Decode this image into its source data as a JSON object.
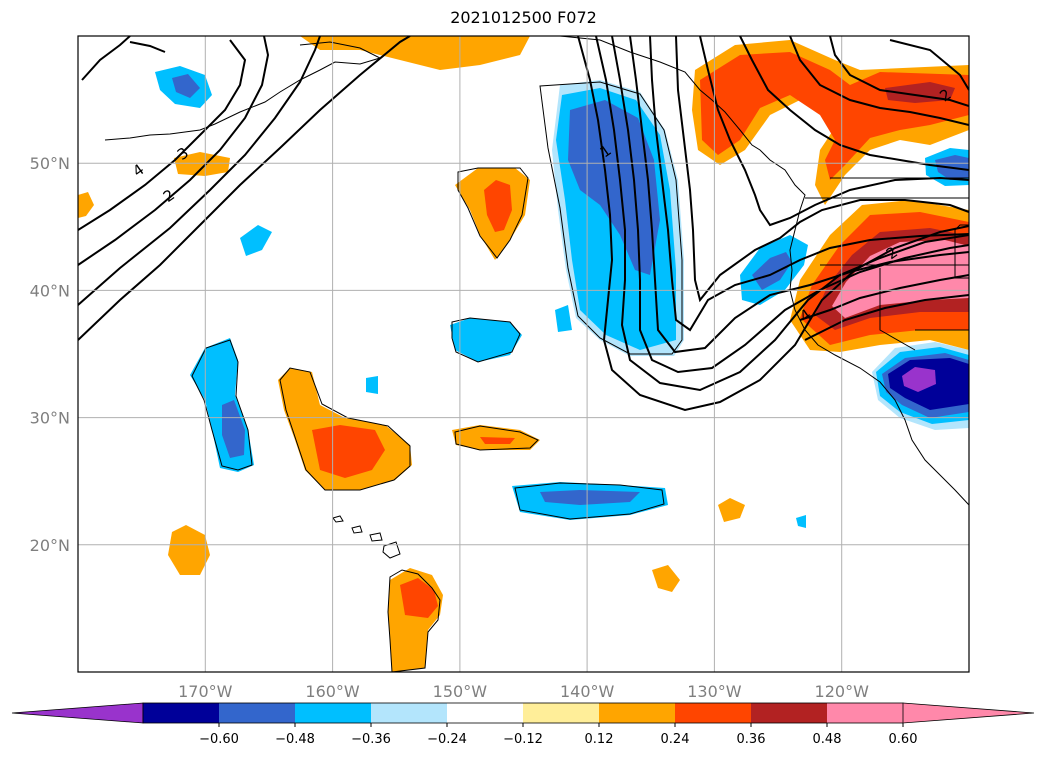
{
  "title": "2021012500 F072",
  "map": {
    "lon_range": [
      -180,
      -110
    ],
    "lat_range": [
      10,
      60
    ],
    "gridlines": true,
    "lon_ticks": [
      {
        "lon": -170,
        "label": "170°W"
      },
      {
        "lon": -160,
        "label": "160°W"
      },
      {
        "lon": -150,
        "label": "150°W"
      },
      {
        "lon": -140,
        "label": "140°W"
      },
      {
        "lon": -130,
        "label": "130°W"
      },
      {
        "lon": -120,
        "label": "120°W"
      }
    ],
    "lat_ticks": [
      {
        "lat": 50,
        "label": "50°N"
      },
      {
        "lat": 40,
        "label": "40°N"
      },
      {
        "lat": 30,
        "label": "30°N"
      },
      {
        "lat": 20,
        "label": "20°N"
      }
    ],
    "contour_labels": [
      {
        "text": "4",
        "lon": -175.3,
        "lat": 49.5
      },
      {
        "text": "3",
        "lon": -171.8,
        "lat": 50.8
      },
      {
        "text": "2",
        "lon": -172.9,
        "lat": 47.5
      },
      {
        "text": "1",
        "lon": -138.6,
        "lat": 51.0
      },
      {
        "text": "4",
        "lon": -122.9,
        "lat": 38.1
      },
      {
        "text": "2",
        "lon": -116.1,
        "lat": 43.0
      },
      {
        "text": "2",
        "lon": -111.9,
        "lat": 55.4
      }
    ]
  },
  "colorbar": {
    "colors": [
      "#9933cc",
      "#000099",
      "#3366cc",
      "#00bfff",
      "#b3e5fc",
      "#ffffff",
      "#ffee99",
      "#ffa500",
      "#ff4500",
      "#b22222",
      "#ff88aa",
      "#ff88aa"
    ],
    "ticks": [
      "−0.60",
      "−0.48",
      "−0.36",
      "−0.24",
      "−0.12",
      "0.12",
      "0.24",
      "0.36",
      "0.48",
      "0.60"
    ]
  }
}
